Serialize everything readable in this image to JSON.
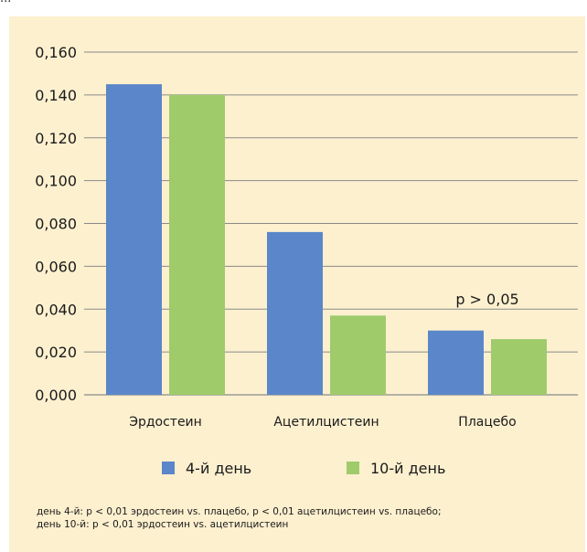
{
  "caption_fragment": "...",
  "notes": [
    "день 4-й: р < 0,01 эрдостеин vs. плацебо, р < 0,01 ацетилцистеин vs. плацебо;",
    "день 10-й: р < 0,01 эрдостеин vs. ацетилцистеин"
  ],
  "colors": {
    "series1": "#5b86c9",
    "series2": "#9fcb6b",
    "panel": "#fdf0cf",
    "grid": "#8a8a8a"
  },
  "chart_data": {
    "type": "bar",
    "categories": [
      "Эрдостеин",
      "Ацетилцистеин",
      "Плацебо"
    ],
    "series": [
      {
        "name": "4-й день",
        "values": [
          0.145,
          0.076,
          0.03
        ]
      },
      {
        "name": "10-й день",
        "values": [
          0.14,
          0.037,
          0.026
        ]
      }
    ],
    "yticks": [
      "0,000",
      "0,020",
      "0,040",
      "0,060",
      "0,080",
      "0,100",
      "0,120",
      "0,140",
      "0,160"
    ],
    "ylim": [
      0,
      0.16
    ],
    "annotations": [
      {
        "text": "р > 0,05",
        "category": "Плацебо"
      }
    ],
    "legend": "bottom",
    "grid": true
  }
}
